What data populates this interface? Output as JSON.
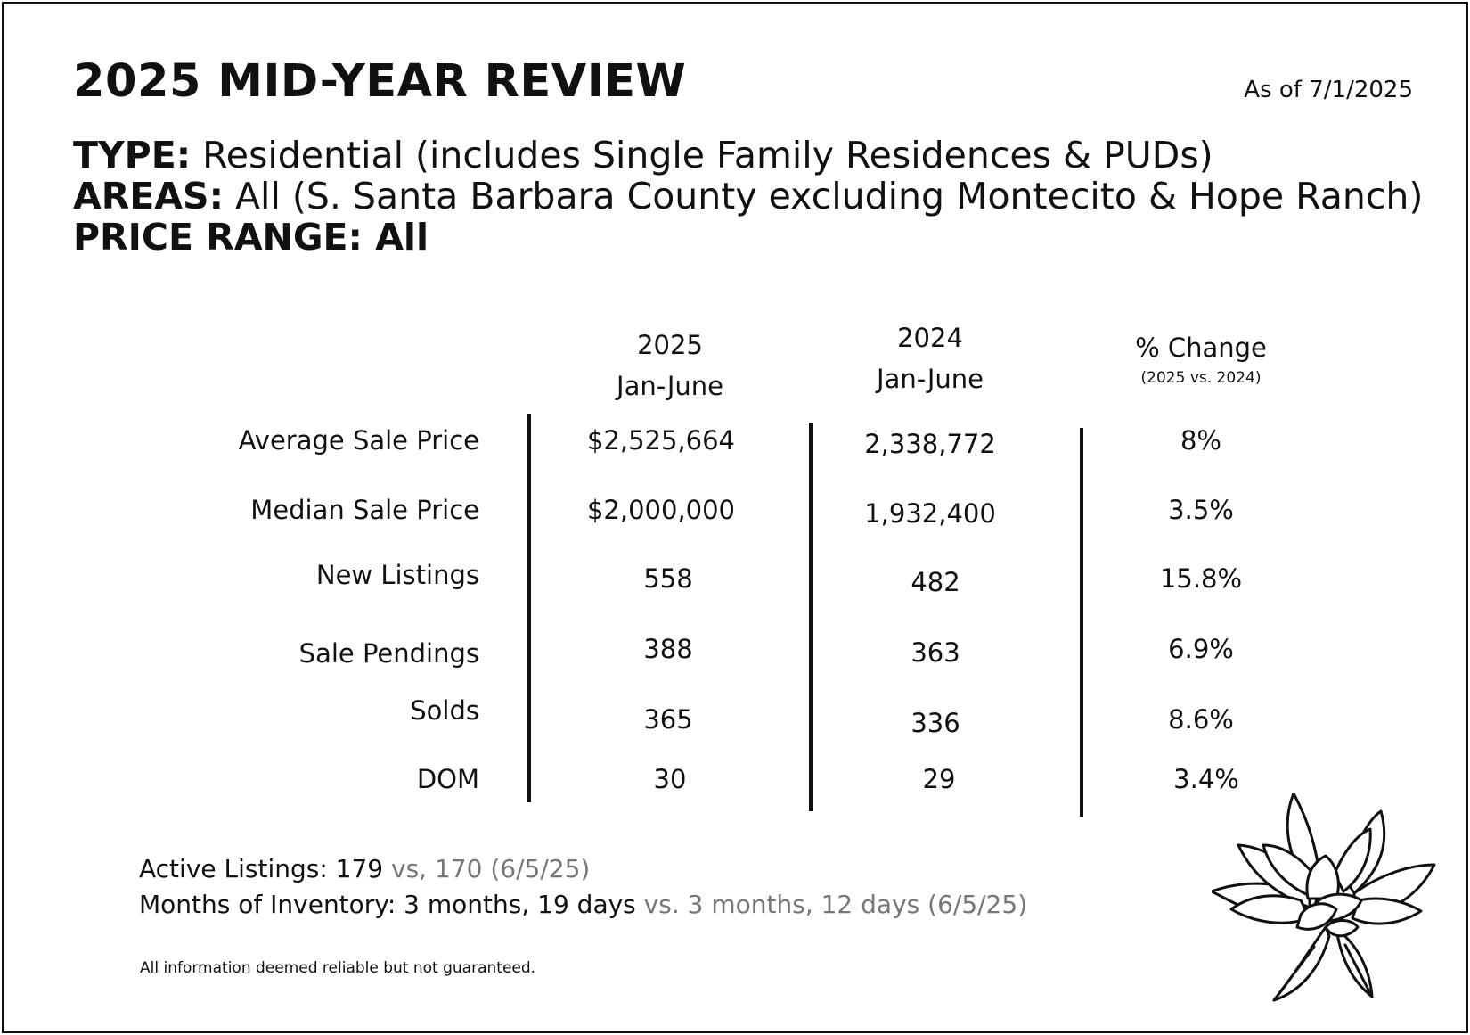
{
  "title": "2025 MID-YEAR REVIEW",
  "as_of": "As of 7/1/2025",
  "meta": {
    "type_label": "TYPE:",
    "type_value": " Residential (includes Single Family Residences & PUDs)",
    "areas_label": "AREAS:",
    "areas_value": " All (S. Santa Barbara County excluding Montecito & Hope Ranch)",
    "price_label": "PRICE RANGE:",
    "price_value": " All"
  },
  "table": {
    "col_2025_year": "2025",
    "col_2025_period": "Jan-June",
    "col_2024_year": "2024",
    "col_2024_period": "Jan-June",
    "col_change": "% Change",
    "col_change_sub": "(2025 vs. 2024)",
    "rows": [
      {
        "label": "Average Sale Price",
        "v2025": "$2,525,664",
        "v2024": "2,338,772",
        "change": "8%"
      },
      {
        "label": "Median Sale Price",
        "v2025": "$2,000,000",
        "v2024": "1,932,400",
        "change": "3.5%"
      },
      {
        "label": "New Listings",
        "v2025": "558",
        "v2024": "482",
        "change": "15.8%"
      },
      {
        "label": "Sale Pendings",
        "v2025": "388",
        "v2024": "363",
        "change": "6.9%"
      },
      {
        "label": "Solds",
        "v2025": "365",
        "v2024": "336",
        "change": "8.6%"
      },
      {
        "label": "DOM",
        "v2025": "30",
        "v2024": "29",
        "change": "3.4%"
      }
    ]
  },
  "footer": {
    "active_label": "Active Listings:  179",
    "active_compare": " vs, 170 (6/5/25)",
    "inventory_label": "Months of Inventory:  3 months, 19 days",
    "inventory_compare": " vs. 3 months, 12 days (6/5/25)",
    "disclaimer": "All information deemed reliable but not guaranteed."
  },
  "decoration": {
    "icon": "magnolia-flower-icon"
  }
}
